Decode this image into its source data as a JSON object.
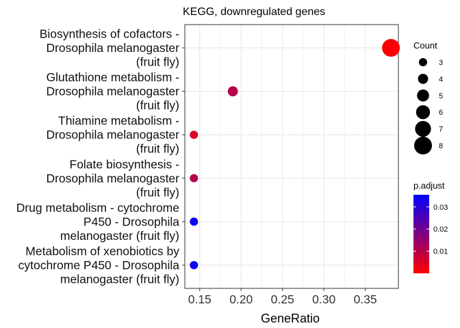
{
  "chart_data": {
    "type": "scatter",
    "title": "KEGG, downregulated genes",
    "xlabel": "GeneRatio",
    "ylabel": "",
    "xlim": [
      0.132,
      0.39
    ],
    "xticks": [
      0.15,
      0.2,
      0.25,
      0.3,
      0.35
    ],
    "xtick_labels": [
      "0.15",
      "0.20",
      "0.25",
      "0.30",
      "0.35"
    ],
    "grid": true,
    "categories": [
      {
        "lines": [
          "Biosynthesis of cofactors -",
          "Drosophila melanogaster",
          "(fruit fly)"
        ]
      },
      {
        "lines": [
          "Glutathione metabolism -",
          "Drosophila melanogaster",
          "(fruit fly)"
        ]
      },
      {
        "lines": [
          "Thiamine metabolism -",
          "Drosophila melanogaster",
          "(fruit fly)"
        ]
      },
      {
        "lines": [
          "Folate biosynthesis -",
          "Drosophila melanogaster",
          "(fruit fly)"
        ]
      },
      {
        "lines": [
          "Drug metabolism - cytochrome",
          "P450 - Drosophila",
          "melanogaster (fruit fly)"
        ]
      },
      {
        "lines": [
          "Metabolism of xenobiotics by",
          "cytochrome P450 - Drosophila",
          "melanogaster (fruit fly)"
        ]
      }
    ],
    "points": [
      {
        "gene_ratio": 0.381,
        "count": 8,
        "p_adjust": 0.0005
      },
      {
        "gene_ratio": 0.19,
        "count": 4,
        "p_adjust": 0.01
      },
      {
        "gene_ratio": 0.143,
        "count": 3,
        "p_adjust": 0.005
      },
      {
        "gene_ratio": 0.143,
        "count": 3,
        "p_adjust": 0.011
      },
      {
        "gene_ratio": 0.143,
        "count": 3,
        "p_adjust": 0.034
      },
      {
        "gene_ratio": 0.143,
        "count": 3,
        "p_adjust": 0.034
      }
    ],
    "size_legend": {
      "title": "Count",
      "values": [
        3,
        4,
        5,
        6,
        7,
        8
      ],
      "labels": [
        "3",
        "4",
        "5",
        "6",
        "7",
        "8"
      ]
    },
    "color_legend": {
      "title": "p.adjust",
      "range": [
        0.0,
        0.0355
      ],
      "ticks": [
        0.01,
        0.02,
        0.03
      ],
      "tick_labels": [
        "0.01",
        "0.02",
        "0.03"
      ],
      "low_color": "#FF0000",
      "high_color": "#0000FF"
    },
    "legend_position": "right"
  }
}
